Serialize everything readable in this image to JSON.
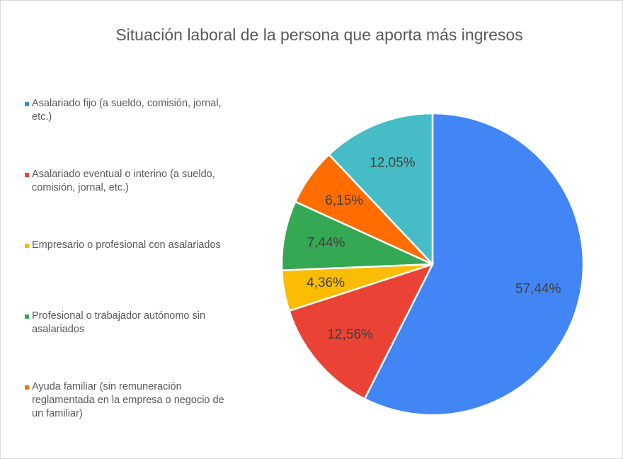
{
  "chart_data": {
    "type": "pie",
    "title": "Situación laboral de la persona que aporta más ingresos",
    "categories": [
      "Asalariado fijo (a sueldo, comisión, jornal, etc.)",
      "Asalariado eventual o interino (a sueldo, comisión, jornal, etc.)",
      "Empresario o profesional con asalariados",
      "Profesional o trabajador autónomo sin asalariados",
      "Ayuda familiar (sin remuneración reglamentada en la empresa o negocio de un familiar)",
      null
    ],
    "values": [
      57.44,
      12.56,
      4.36,
      7.44,
      6.15,
      12.05
    ],
    "value_labels": [
      "57,44%",
      "12,56%",
      "4,36%",
      "7,44%",
      "6,15%",
      "12,05%"
    ],
    "colors": [
      "#4285f4",
      "#ea4335",
      "#fbbc04",
      "#34a853",
      "#ff6d01",
      "#46bdc6"
    ],
    "legend": "left"
  }
}
